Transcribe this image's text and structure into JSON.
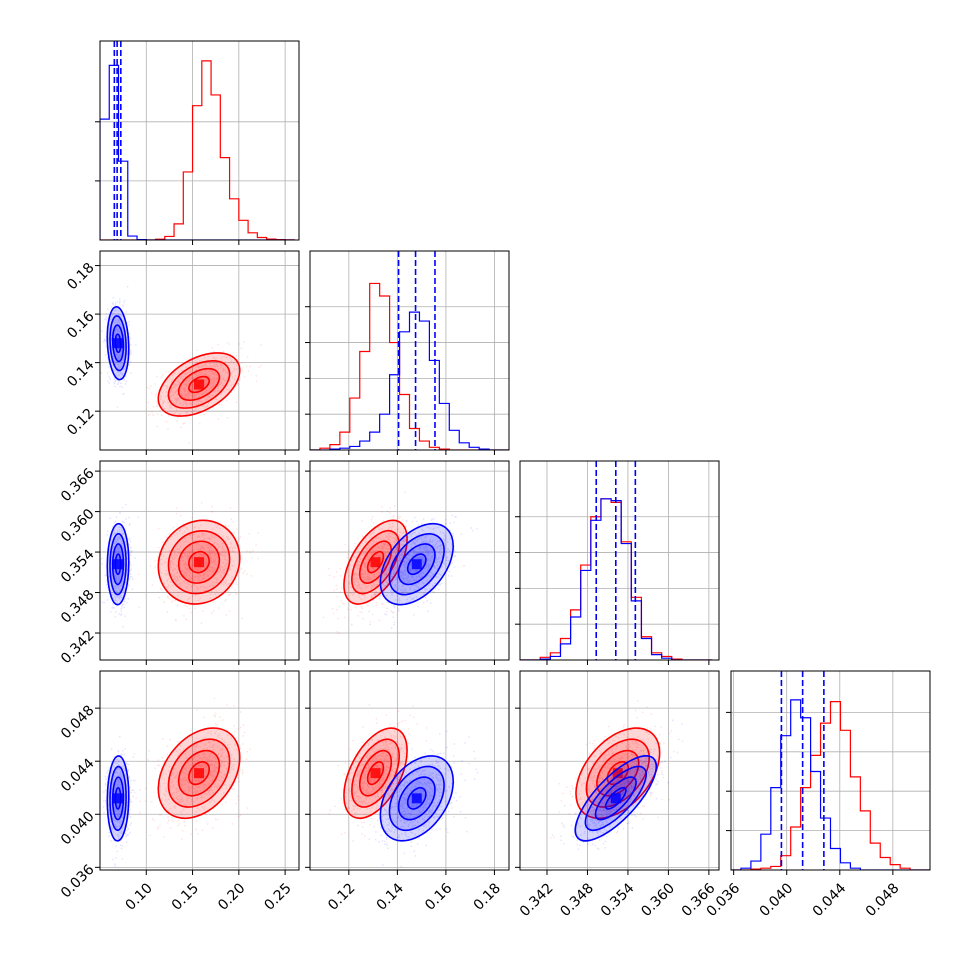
{
  "colors": {
    "series_a": "#ff0000",
    "series_b": "#0000ff",
    "grid": "#b0b0b0"
  },
  "chart_data": {
    "type": "scatter",
    "subtype": "corner-plot",
    "grid": true,
    "legend": "none",
    "parameters": [
      {
        "range": [
          0.05,
          0.265
        ],
        "ticks": [
          0.1,
          0.15,
          0.2,
          0.25
        ],
        "tick_labels": [
          "0.10",
          "0.15",
          "0.20",
          "0.25"
        ]
      },
      {
        "range": [
          0.104,
          0.186
        ],
        "ticks": [
          0.12,
          0.14,
          0.16,
          0.18
        ],
        "tick_labels": [
          "0.12",
          "0.14",
          "0.16",
          "0.18"
        ]
      },
      {
        "range": [
          0.338,
          0.3675
        ],
        "ticks": [
          0.342,
          0.348,
          0.354,
          0.36,
          0.366
        ],
        "tick_labels": [
          "0.342",
          "0.348",
          "0.354",
          "0.360",
          "0.366"
        ]
      },
      {
        "range": [
          0.0358,
          0.0508
        ],
        "ticks": [
          0.036,
          0.04,
          0.044,
          0.048
        ],
        "tick_labels": [
          "0.036",
          "0.040",
          "0.044",
          "0.048"
        ]
      }
    ],
    "series": [
      {
        "color": "#ff0000",
        "mean": [
          0.157,
          0.131,
          0.3525,
          0.0431
        ],
        "std": [
          0.022,
          0.0065,
          0.0031,
          0.0017
        ]
      },
      {
        "color": "#0000ff",
        "mean": [
          0.0695,
          0.148,
          0.3522,
          0.0412
        ],
        "std": [
          0.0058,
          0.0075,
          0.003,
          0.0016
        ]
      }
    ],
    "quantile_lines": {
      "color": "#0000ff",
      "values": [
        [
          0.0655,
          0.0685,
          0.0725
        ],
        [
          0.1405,
          0.1475,
          0.1555
        ],
        [
          0.3493,
          0.3522,
          0.3551
        ],
        [
          0.0396,
          0.0412,
          0.0428
        ]
      ]
    },
    "histograms": [
      {
        "edges": [
          0.05,
          0.06,
          0.07,
          0.08,
          0.09,
          0.1,
          0.11,
          0.12,
          0.13,
          0.14,
          0.15,
          0.16,
          0.17,
          0.18,
          0.19,
          0.2,
          0.21,
          0.22,
          0.23,
          0.24,
          0.25,
          0.26
        ],
        "ymax": 1.0,
        "ticks": [
          0.33,
          0.66
        ],
        "series": [
          {
            "color": "#ff0000",
            "values": [
              0,
              0,
              0,
              0,
              0,
              0,
              0.004,
              0.02,
              0.09,
              0.38,
              0.75,
              1.0,
              0.81,
              0.46,
              0.23,
              0.11,
              0.04,
              0.014,
              0.005,
              0.002,
              0.001
            ]
          },
          {
            "color": "#0000ff",
            "values": [
              0.675,
              0.975,
              0.44,
              0.022,
              0.002,
              0,
              0,
              0,
              0,
              0,
              0,
              0,
              0,
              0,
              0,
              0,
              0,
              0,
              0,
              0,
              0
            ]
          }
        ]
      },
      {
        "edges": [
          0.104,
          0.1081,
          0.1122,
          0.1163,
          0.1204,
          0.1245,
          0.1286,
          0.1327,
          0.1368,
          0.1409,
          0.145,
          0.1491,
          0.1532,
          0.1573,
          0.1614,
          0.1655,
          0.1696,
          0.1737,
          0.1778,
          0.1819,
          0.186
        ],
        "ymax": 1.0,
        "ticks": [
          0.2,
          0.4,
          0.6,
          0.8
        ],
        "series": [
          {
            "color": "#ff0000",
            "values": [
              0.0,
              0.01,
              0.03,
              0.1,
              0.29,
              0.55,
              0.93,
              0.86,
              0.6,
              0.31,
              0.12,
              0.05,
              0.015,
              0.005,
              0.0,
              0.0,
              0.0,
              0.0,
              0.0,
              0.0
            ]
          },
          {
            "color": "#0000ff",
            "values": [
              0.0,
              0.0,
              0.005,
              0.01,
              0.02,
              0.05,
              0.1,
              0.2,
              0.42,
              0.66,
              0.77,
              0.72,
              0.5,
              0.26,
              0.11,
              0.04,
              0.015,
              0.005,
              0.0,
              0.0
            ]
          }
        ]
      },
      {
        "edges": [
          0.338,
          0.3395,
          0.341,
          0.3425,
          0.344,
          0.3455,
          0.347,
          0.3485,
          0.35,
          0.3515,
          0.353,
          0.3545,
          0.356,
          0.3575,
          0.359,
          0.3605,
          0.362,
          0.3635,
          0.365,
          0.3665
        ],
        "ymax": 1.0,
        "ticks": [
          0.2,
          0.4,
          0.6,
          0.8
        ],
        "series": [
          {
            "color": "#ff0000",
            "values": [
              0.0,
              0.0,
              0.015,
              0.04,
              0.12,
              0.28,
              0.53,
              0.8,
              0.9,
              0.88,
              0.66,
              0.35,
              0.13,
              0.04,
              0.02,
              0.005,
              0.0,
              0.0,
              0.0
            ]
          },
          {
            "color": "#0000ff",
            "values": [
              0.0,
              0.0,
              0.005,
              0.02,
              0.09,
              0.24,
              0.5,
              0.78,
              0.9,
              0.89,
              0.65,
              0.33,
              0.12,
              0.03,
              0.01,
              0.0,
              0.0,
              0.0,
              0.0
            ]
          }
        ]
      },
      {
        "edges": [
          0.0358,
          0.03655,
          0.0373,
          0.03805,
          0.0388,
          0.03955,
          0.0403,
          0.04105,
          0.0418,
          0.04255,
          0.0433,
          0.04405,
          0.0448,
          0.04555,
          0.0463,
          0.04705,
          0.0478,
          0.04855,
          0.0493,
          0.05005,
          0.0508
        ],
        "ymax": 1.0,
        "ticks": [
          0.22,
          0.44,
          0.66,
          0.88
        ],
        "series": [
          {
            "color": "#ff0000",
            "values": [
              0.0,
              0.0,
              0.005,
              0.01,
              0.02,
              0.08,
              0.24,
              0.46,
              0.64,
              0.82,
              0.94,
              0.78,
              0.52,
              0.33,
              0.15,
              0.07,
              0.03,
              0.01,
              0.0,
              0.0
            ]
          },
          {
            "color": "#0000ff",
            "values": [
              0.0,
              0.01,
              0.05,
              0.2,
              0.46,
              0.75,
              0.95,
              0.85,
              0.55,
              0.29,
              0.12,
              0.04,
              0.01,
              0.0,
              0.0,
              0.0,
              0.0,
              0.0,
              0.0,
              0.0
            ]
          }
        ]
      }
    ]
  }
}
